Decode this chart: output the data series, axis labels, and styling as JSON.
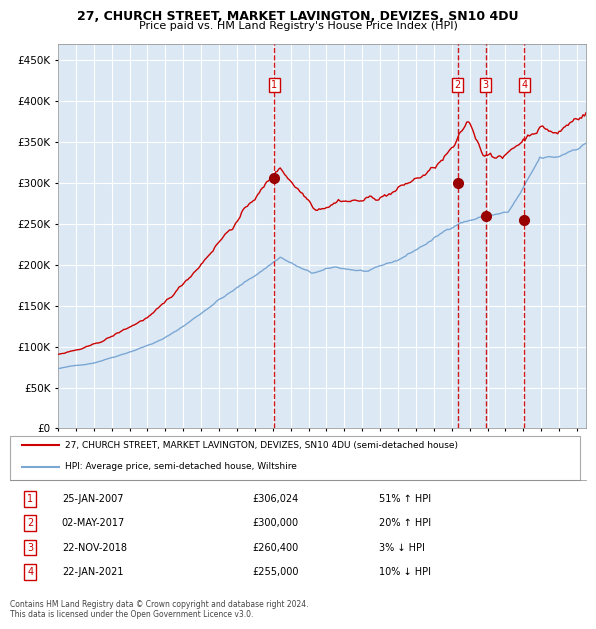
{
  "title1": "27, CHURCH STREET, MARKET LAVINGTON, DEVIZES, SN10 4DU",
  "title2": "Price paid vs. HM Land Registry's House Price Index (HPI)",
  "legend_line1": "27, CHURCH STREET, MARKET LAVINGTON, DEVIZES, SN10 4DU (semi-detached house)",
  "legend_line2": "HPI: Average price, semi-detached house, Wiltshire",
  "footer": "Contains HM Land Registry data © Crown copyright and database right 2024.\nThis data is licensed under the Open Government Licence v3.0.",
  "table": [
    {
      "num": "1",
      "date": "25-JAN-2007",
      "price": "£306,024",
      "change": "51% ↑ HPI"
    },
    {
      "num": "2",
      "date": "02-MAY-2017",
      "price": "£300,000",
      "change": "20% ↑ HPI"
    },
    {
      "num": "3",
      "date": "22-NOV-2018",
      "price": "£260,400",
      "change": "3% ↓ HPI"
    },
    {
      "num": "4",
      "date": "22-JAN-2021",
      "price": "£255,000",
      "change": "10% ↓ HPI"
    }
  ],
  "sale_dates_num": [
    2007.07,
    2017.33,
    2018.9,
    2021.06
  ],
  "sale_prices": [
    306024,
    300000,
    260400,
    255000
  ],
  "background_color": "#ffffff",
  "plot_bg_color": "#dce9f5",
  "grid_color": "#ffffff",
  "red_line_color": "#cc0000",
  "blue_line_color": "#7ba7d4",
  "sale_marker_color": "#990000",
  "vline_color": "#cc0000",
  "ylim": [
    0,
    470000
  ],
  "xlim_start": 1995.0,
  "xlim_end": 2024.5,
  "yticks": [
    0,
    50000,
    100000,
    150000,
    200000,
    250000,
    300000,
    350000,
    400000,
    450000
  ],
  "ylabels": [
    "£0",
    "£50K",
    "£100K",
    "£150K",
    "£200K",
    "£250K",
    "£300K",
    "£350K",
    "£400K",
    "£450K"
  ]
}
